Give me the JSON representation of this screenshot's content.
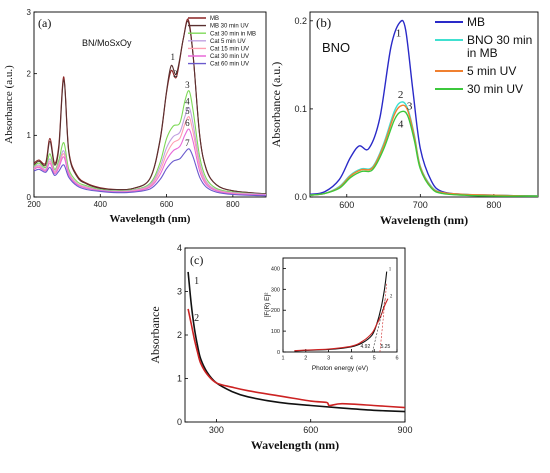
{
  "chart_data": [
    {
      "type": "line",
      "panel_label": "(a)",
      "inset_title": "BN/MoSxOy",
      "xlabel": "Wavelength (nm)",
      "ylabel": "Absorbance (a.u.)",
      "xlim": [
        200,
        900
      ],
      "ylim": [
        0,
        3
      ],
      "xticks": [
        "200",
        "400",
        "600",
        "800"
      ],
      "yticks": [
        "0",
        "1",
        "2",
        "3"
      ],
      "legend_position": "top-right",
      "series": [
        {
          "name": "MB",
          "color": "#8b2323",
          "peak_label": "",
          "x": [
            200,
            215,
            235,
            248,
            262,
            275,
            290,
            305,
            330,
            360,
            400,
            450,
            500,
            550,
            580,
            600,
            614,
            630,
            650,
            665,
            680,
            700,
            720,
            750,
            800,
            900
          ],
          "y": [
            0.55,
            0.6,
            0.55,
            0.95,
            0.55,
            0.85,
            1.95,
            0.75,
            0.35,
            0.22,
            0.15,
            0.12,
            0.14,
            0.3,
            0.9,
            1.7,
            2.05,
            1.95,
            2.55,
            2.88,
            2.3,
            1.0,
            0.45,
            0.2,
            0.1,
            0.05
          ]
        },
        {
          "name": "MB 30 min UV",
          "color": "#5a3030",
          "peak_label": "",
          "x": [
            200,
            215,
            235,
            248,
            262,
            275,
            290,
            305,
            330,
            360,
            400,
            450,
            500,
            550,
            580,
            600,
            614,
            630,
            650,
            665,
            680,
            700,
            720,
            750,
            800,
            900
          ],
          "y": [
            0.52,
            0.58,
            0.52,
            0.9,
            0.52,
            0.8,
            1.9,
            0.72,
            0.33,
            0.21,
            0.14,
            0.12,
            0.14,
            0.3,
            0.92,
            1.72,
            2.13,
            2.0,
            2.55,
            2.85,
            2.3,
            1.0,
            0.45,
            0.2,
            0.1,
            0.05
          ]
        },
        {
          "name": "Cat 30 min in MB",
          "color": "#7ed957",
          "peak_label": "3",
          "x": [
            200,
            215,
            235,
            248,
            262,
            275,
            290,
            305,
            330,
            360,
            400,
            450,
            500,
            550,
            580,
            600,
            620,
            640,
            655,
            668,
            680,
            700,
            720,
            750,
            800,
            900
          ],
          "y": [
            0.5,
            0.55,
            0.48,
            0.7,
            0.45,
            0.6,
            0.88,
            0.45,
            0.25,
            0.18,
            0.12,
            0.1,
            0.12,
            0.22,
            0.55,
            0.95,
            1.15,
            1.2,
            1.55,
            1.72,
            1.4,
            0.65,
            0.3,
            0.14,
            0.08,
            0.04
          ]
        },
        {
          "name": "Cat 5 min UV",
          "color": "#c0a0e0",
          "peak_label": "4",
          "x": [
            200,
            215,
            235,
            248,
            262,
            275,
            290,
            305,
            330,
            360,
            400,
            450,
            500,
            550,
            580,
            600,
            620,
            640,
            655,
            668,
            680,
            700,
            720,
            750,
            800,
            900
          ],
          "y": [
            0.48,
            0.52,
            0.45,
            0.62,
            0.42,
            0.55,
            0.75,
            0.4,
            0.22,
            0.16,
            0.11,
            0.09,
            0.11,
            0.2,
            0.48,
            0.8,
            0.98,
            1.05,
            1.3,
            1.45,
            1.18,
            0.55,
            0.25,
            0.12,
            0.07,
            0.04
          ]
        },
        {
          "name": "Cat 15 min UV",
          "color": "#ff9fb0",
          "peak_label": "5",
          "x": [
            200,
            215,
            235,
            248,
            262,
            275,
            290,
            305,
            330,
            360,
            400,
            450,
            500,
            550,
            580,
            600,
            620,
            640,
            655,
            668,
            680,
            700,
            720,
            750,
            800,
            900
          ],
          "y": [
            0.46,
            0.5,
            0.43,
            0.58,
            0.4,
            0.52,
            0.7,
            0.38,
            0.21,
            0.15,
            0.1,
            0.08,
            0.1,
            0.18,
            0.42,
            0.7,
            0.88,
            0.95,
            1.18,
            1.3,
            1.05,
            0.5,
            0.22,
            0.11,
            0.06,
            0.03
          ]
        },
        {
          "name": "Cat 30 min UV",
          "color": "#e86ad8",
          "peak_label": "6",
          "x": [
            200,
            215,
            235,
            248,
            262,
            275,
            290,
            305,
            330,
            360,
            400,
            450,
            500,
            550,
            580,
            600,
            620,
            640,
            655,
            668,
            680,
            700,
            720,
            750,
            800,
            900
          ],
          "y": [
            0.45,
            0.48,
            0.42,
            0.55,
            0.38,
            0.48,
            0.65,
            0.36,
            0.2,
            0.14,
            0.1,
            0.08,
            0.09,
            0.16,
            0.36,
            0.6,
            0.75,
            0.82,
            1.0,
            1.1,
            0.9,
            0.42,
            0.2,
            0.1,
            0.05,
            0.03
          ]
        },
        {
          "name": "Cat 60 min UV",
          "color": "#6a5acd",
          "peak_label": "7",
          "x": [
            200,
            215,
            235,
            248,
            262,
            275,
            290,
            305,
            330,
            360,
            400,
            450,
            500,
            550,
            580,
            600,
            620,
            640,
            655,
            668,
            680,
            700,
            720,
            750,
            800,
            900
          ],
          "y": [
            0.42,
            0.45,
            0.4,
            0.48,
            0.35,
            0.42,
            0.52,
            0.32,
            0.18,
            0.12,
            0.09,
            0.07,
            0.08,
            0.13,
            0.28,
            0.46,
            0.58,
            0.62,
            0.72,
            0.78,
            0.65,
            0.32,
            0.16,
            0.08,
            0.04,
            0.02
          ]
        }
      ],
      "curve_labels": [
        {
          "text": "1",
          "x": 612,
          "y": 2.22
        },
        {
          "text": "2",
          "x": 620,
          "y": 1.95
        }
      ]
    },
    {
      "type": "line",
      "panel_label": "(b)",
      "inset_title": "BNO",
      "xlabel": "Wavelength (nm)",
      "ylabel": "Absorbance (a.u.)",
      "xlim": [
        550,
        860
      ],
      "ylim": [
        0,
        0.21
      ],
      "xticks": [
        "600",
        "700",
        "800"
      ],
      "yticks": [
        "0.0",
        "0.1",
        "0.2"
      ],
      "legend_position": "top-right",
      "series": [
        {
          "name": "MB",
          "color": "#2a2ac8",
          "peak_label": "1",
          "x": [
            550,
            570,
            590,
            605,
            617,
            630,
            645,
            660,
            672,
            680,
            690,
            700,
            715,
            730,
            760,
            800,
            860
          ],
          "y": [
            0.003,
            0.006,
            0.02,
            0.045,
            0.058,
            0.055,
            0.09,
            0.17,
            0.198,
            0.19,
            0.12,
            0.055,
            0.018,
            0.006,
            0.003,
            0.002,
            0.001
          ]
        },
        {
          "name": "BNO 30 min in MB",
          "color": "#40e0d0",
          "peak_label": "2",
          "x": [
            550,
            570,
            590,
            605,
            620,
            635,
            650,
            665,
            675,
            683,
            692,
            700,
            715,
            730,
            760,
            800,
            860
          ],
          "y": [
            0.002,
            0.004,
            0.012,
            0.025,
            0.032,
            0.034,
            0.06,
            0.098,
            0.108,
            0.1,
            0.07,
            0.035,
            0.012,
            0.005,
            0.003,
            0.002,
            0.001
          ]
        },
        {
          "name": "5 min UV",
          "color": "#f08030",
          "peak_label": "3",
          "x": [
            550,
            570,
            590,
            605,
            620,
            635,
            650,
            665,
            675,
            683,
            692,
            700,
            715,
            730,
            760,
            800,
            860
          ],
          "y": [
            0.002,
            0.004,
            0.011,
            0.024,
            0.031,
            0.033,
            0.058,
            0.094,
            0.104,
            0.098,
            0.068,
            0.034,
            0.011,
            0.005,
            0.003,
            0.002,
            0.001
          ]
        },
        {
          "name": "30 min UV",
          "color": "#3cc83c",
          "peak_label": "4",
          "x": [
            550,
            570,
            590,
            605,
            620,
            635,
            650,
            665,
            675,
            683,
            692,
            700,
            715,
            730,
            760,
            800,
            860
          ],
          "y": [
            0.002,
            0.004,
            0.01,
            0.022,
            0.029,
            0.031,
            0.054,
            0.088,
            0.097,
            0.092,
            0.064,
            0.032,
            0.01,
            0.004,
            0.002,
            0.001,
            0.001
          ]
        }
      ]
    },
    {
      "type": "line",
      "panel_label": "(c)",
      "xlabel": "Wavelength (nm)",
      "ylabel": "Absorbance",
      "xlim": [
        200,
        900
      ],
      "ylim": [
        0,
        4
      ],
      "xticks": [
        "300",
        "600",
        "900"
      ],
      "yticks": [
        "0",
        "1",
        "2",
        "3",
        "4"
      ],
      "series": [
        {
          "name": "",
          "color": "#111111",
          "peak_label": "1",
          "x": [
            210,
            220,
            230,
            240,
            250,
            270,
            300,
            350,
            400,
            500,
            600,
            700,
            800,
            900
          ],
          "y": [
            3.45,
            2.7,
            2.15,
            1.75,
            1.45,
            1.15,
            0.9,
            0.7,
            0.58,
            0.45,
            0.38,
            0.32,
            0.27,
            0.24
          ]
        },
        {
          "name": "",
          "color": "#cc2222",
          "peak_label": "2",
          "x": [
            210,
            220,
            230,
            240,
            250,
            270,
            300,
            350,
            400,
            500,
            600,
            650,
            660,
            700,
            800,
            900
          ],
          "y": [
            2.6,
            2.25,
            1.9,
            1.6,
            1.35,
            1.1,
            0.9,
            0.8,
            0.72,
            0.6,
            0.48,
            0.45,
            0.38,
            0.42,
            0.38,
            0.33
          ]
        }
      ]
    },
    {
      "type": "line",
      "panel_label": "inset of (c)",
      "xlabel": "Photon energy (eV)",
      "ylabel": "[F(R) E]²",
      "xlim": [
        1,
        6
      ],
      "ylim": [
        0,
        450
      ],
      "xticks": [
        "1",
        "2",
        "3",
        "4",
        "5",
        "6"
      ],
      "yticks": [
        "0",
        "100",
        "200",
        "300",
        "400"
      ],
      "series": [
        {
          "name": "",
          "color": "#111111",
          "peak_label": "1",
          "x": [
            1.5,
            2,
            3,
            4,
            4.5,
            4.9,
            5.1,
            5.3,
            5.45,
            5.55
          ],
          "y": [
            5,
            8,
            12,
            25,
            45,
            80,
            130,
            210,
            300,
            385
          ]
        },
        {
          "name": "",
          "color": "#cc2222",
          "peak_label": "2",
          "x": [
            1.5,
            2,
            3,
            4,
            4.5,
            4.9,
            5.1,
            5.3,
            5.45,
            5.6
          ],
          "y": [
            6,
            9,
            14,
            28,
            52,
            90,
            130,
            175,
            220,
            255
          ]
        }
      ],
      "annotations": [
        "4.92",
        "5.25"
      ]
    }
  ]
}
